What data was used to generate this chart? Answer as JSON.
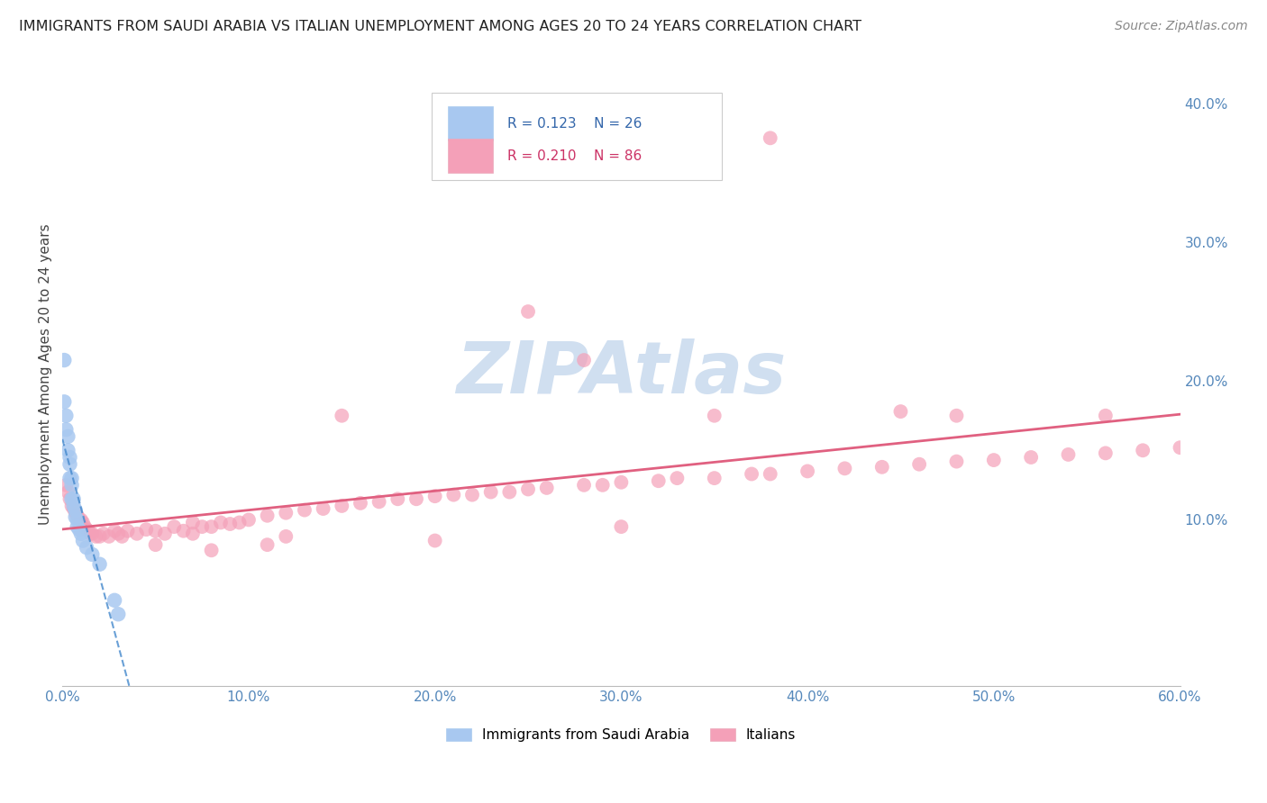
{
  "title": "IMMIGRANTS FROM SAUDI ARABIA VS ITALIAN UNEMPLOYMENT AMONG AGES 20 TO 24 YEARS CORRELATION CHART",
  "source": "Source: ZipAtlas.com",
  "ylabel": "Unemployment Among Ages 20 to 24 years",
  "xlim": [
    0.0,
    0.6
  ],
  "ylim": [
    -0.02,
    0.43
  ],
  "xticks": [
    0.0,
    0.1,
    0.2,
    0.3,
    0.4,
    0.5,
    0.6
  ],
  "xtick_labels": [
    "0.0%",
    "10.0%",
    "20.0%",
    "30.0%",
    "40.0%",
    "50.0%",
    "60.0%"
  ],
  "yticks_right": [
    0.1,
    0.2,
    0.3,
    0.4
  ],
  "ytick_labels_right": [
    "10.0%",
    "20.0%",
    "30.0%",
    "40.0%"
  ],
  "blue_color": "#A8C8F0",
  "pink_color": "#F4A0B8",
  "blue_line_color": "#4488CC",
  "pink_line_color": "#E06080",
  "watermark": "ZIPAtlas",
  "watermark_color": "#D0DFF0",
  "grid_color": "#DDDDEE",
  "blue_scatter_x": [
    0.001,
    0.001,
    0.002,
    0.002,
    0.003,
    0.003,
    0.004,
    0.004,
    0.004,
    0.005,
    0.005,
    0.005,
    0.006,
    0.006,
    0.007,
    0.007,
    0.008,
    0.008,
    0.009,
    0.01,
    0.011,
    0.013,
    0.016,
    0.02,
    0.028,
    0.03
  ],
  "blue_scatter_y": [
    0.215,
    0.185,
    0.175,
    0.165,
    0.16,
    0.15,
    0.145,
    0.14,
    0.13,
    0.13,
    0.125,
    0.115,
    0.115,
    0.11,
    0.107,
    0.102,
    0.1,
    0.095,
    0.093,
    0.09,
    0.085,
    0.08,
    0.075,
    0.068,
    0.042,
    0.032
  ],
  "pink_scatter_x": [
    0.002,
    0.003,
    0.004,
    0.005,
    0.006,
    0.007,
    0.008,
    0.009,
    0.01,
    0.011,
    0.012,
    0.013,
    0.014,
    0.015,
    0.016,
    0.018,
    0.02,
    0.022,
    0.025,
    0.028,
    0.03,
    0.032,
    0.035,
    0.04,
    0.045,
    0.05,
    0.055,
    0.06,
    0.065,
    0.07,
    0.075,
    0.08,
    0.085,
    0.09,
    0.095,
    0.1,
    0.11,
    0.12,
    0.13,
    0.14,
    0.15,
    0.16,
    0.17,
    0.18,
    0.19,
    0.2,
    0.21,
    0.22,
    0.23,
    0.24,
    0.25,
    0.26,
    0.28,
    0.29,
    0.3,
    0.32,
    0.33,
    0.35,
    0.37,
    0.38,
    0.4,
    0.42,
    0.44,
    0.46,
    0.48,
    0.5,
    0.52,
    0.54,
    0.56,
    0.58,
    0.6,
    0.15,
    0.25,
    0.35,
    0.45,
    0.05,
    0.08,
    0.12,
    0.2,
    0.3,
    0.38,
    0.28,
    0.48,
    0.56,
    0.07,
    0.11
  ],
  "pink_scatter_y": [
    0.125,
    0.12,
    0.115,
    0.11,
    0.108,
    0.105,
    0.103,
    0.1,
    0.1,
    0.098,
    0.095,
    0.093,
    0.092,
    0.09,
    0.09,
    0.088,
    0.088,
    0.09,
    0.088,
    0.092,
    0.09,
    0.088,
    0.092,
    0.09,
    0.093,
    0.092,
    0.09,
    0.095,
    0.092,
    0.09,
    0.095,
    0.095,
    0.098,
    0.097,
    0.098,
    0.1,
    0.103,
    0.105,
    0.107,
    0.108,
    0.11,
    0.112,
    0.113,
    0.115,
    0.115,
    0.117,
    0.118,
    0.118,
    0.12,
    0.12,
    0.122,
    0.123,
    0.125,
    0.125,
    0.127,
    0.128,
    0.13,
    0.13,
    0.133,
    0.133,
    0.135,
    0.137,
    0.138,
    0.14,
    0.142,
    0.143,
    0.145,
    0.147,
    0.148,
    0.15,
    0.152,
    0.175,
    0.25,
    0.175,
    0.178,
    0.082,
    0.078,
    0.088,
    0.085,
    0.095,
    0.375,
    0.215,
    0.175,
    0.175,
    0.098,
    0.082
  ]
}
